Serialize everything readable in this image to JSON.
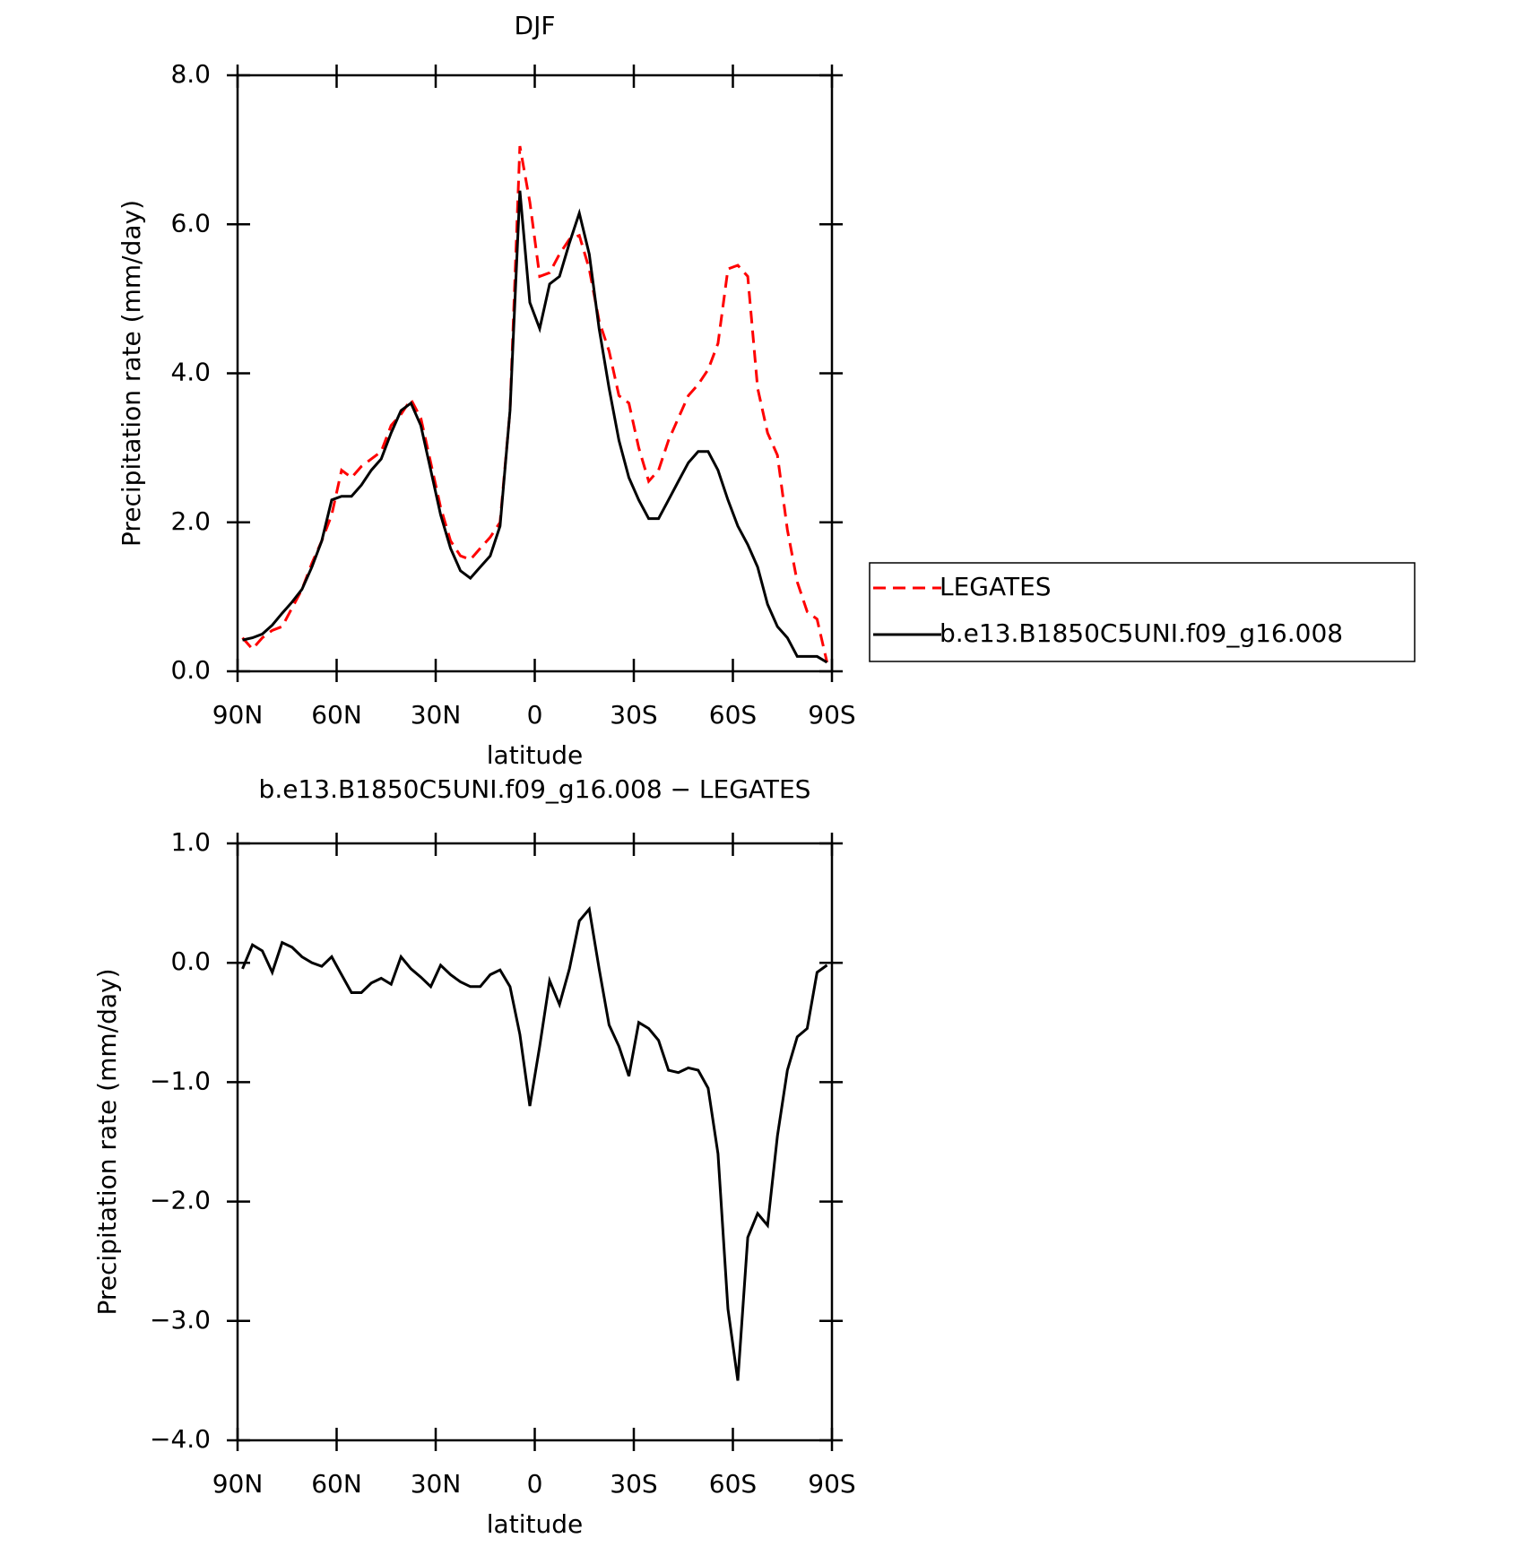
{
  "chart_data": [
    {
      "type": "line",
      "title": "DJF",
      "x_label": "latitude",
      "y_label": "Precipitation rate (mm/day)",
      "x": [
        88.5,
        85.5,
        82.5,
        79.5,
        76.5,
        73.5,
        70.5,
        67.5,
        64.5,
        61.5,
        58.5,
        55.5,
        52.5,
        49.5,
        46.5,
        43.5,
        40.5,
        37.5,
        34.5,
        31.5,
        28.5,
        25.5,
        22.5,
        19.5,
        16.5,
        13.5,
        10.5,
        7.5,
        4.5,
        1.5,
        -1.5,
        -4.5,
        -7.5,
        -10.5,
        -13.5,
        -16.5,
        -19.5,
        -22.5,
        -25.5,
        -28.5,
        -31.5,
        -34.5,
        -37.5,
        -40.5,
        -43.5,
        -46.5,
        -49.5,
        -52.5,
        -55.5,
        -58.5,
        -61.5,
        -64.5,
        -67.5,
        -70.5,
        -73.5,
        -76.5,
        -79.5,
        -82.5,
        -85.5,
        -88.5
      ],
      "xlim": [
        90,
        -90
      ],
      "xticks": [
        {
          "value": 90,
          "label": "90N"
        },
        {
          "value": 60,
          "label": "60N"
        },
        {
          "value": 30,
          "label": "30N"
        },
        0,
        {
          "value": -30,
          "label": "30S"
        },
        {
          "value": -60,
          "label": "60S"
        },
        {
          "value": -90,
          "label": "90S"
        }
      ],
      "ylim": [
        0,
        8
      ],
      "yticks": [
        {
          "value": 0,
          "label": "0.0"
        },
        {
          "value": 2,
          "label": "2.0"
        },
        {
          "value": 4,
          "label": "4.0"
        },
        {
          "value": 6,
          "label": "6.0"
        },
        {
          "value": 8,
          "label": "8.0"
        }
      ],
      "legend": "right",
      "series": [
        {
          "name": "LEGATES",
          "color": "#ff0000",
          "style": "dashed",
          "values": [
            0.45,
            0.3,
            0.45,
            0.55,
            0.6,
            0.85,
            1.1,
            1.45,
            1.75,
            2.1,
            2.7,
            2.6,
            2.75,
            2.85,
            2.95,
            3.3,
            3.45,
            3.65,
            3.4,
            2.8,
            2.2,
            1.75,
            1.55,
            1.5,
            1.65,
            1.8,
            2.0,
            3.5,
            7.05,
            6.3,
            5.3,
            5.35,
            5.6,
            5.8,
            5.85,
            5.4,
            4.7,
            4.3,
            3.7,
            3.6,
            3.0,
            2.55,
            2.7,
            3.1,
            3.4,
            3.7,
            3.85,
            4.05,
            4.4,
            5.4,
            5.45,
            5.3,
            3.8,
            3.2,
            2.9,
            1.9,
            1.2,
            0.8,
            0.7,
            0.12
          ]
        },
        {
          "name": "b.e13.B1850C5UNI.f09_g16.008",
          "color": "#000000",
          "style": "solid",
          "values": [
            0.42,
            0.45,
            0.5,
            0.62,
            0.78,
            0.93,
            1.1,
            1.4,
            1.75,
            2.3,
            2.35,
            2.35,
            2.5,
            2.7,
            2.85,
            3.2,
            3.5,
            3.6,
            3.3,
            2.7,
            2.1,
            1.65,
            1.35,
            1.25,
            1.4,
            1.55,
            1.95,
            3.5,
            6.45,
            4.95,
            4.6,
            5.2,
            5.3,
            5.75,
            6.15,
            5.6,
            4.6,
            3.8,
            3.1,
            2.6,
            2.3,
            2.05,
            2.05,
            2.3,
            2.55,
            2.8,
            2.95,
            2.95,
            2.7,
            2.3,
            1.95,
            1.7,
            1.4,
            0.9,
            0.6,
            0.45,
            0.2,
            0.2,
            0.2,
            0.12
          ]
        }
      ]
    },
    {
      "type": "line",
      "title": "b.e13.B1850C5UNI.f09_g16.008 − LEGATES",
      "x_label": "latitude",
      "y_label": "Precipitation rate (mm/day)",
      "x": [
        88.5,
        85.5,
        82.5,
        79.5,
        76.5,
        73.5,
        70.5,
        67.5,
        64.5,
        61.5,
        58.5,
        55.5,
        52.5,
        49.5,
        46.5,
        43.5,
        40.5,
        37.5,
        34.5,
        31.5,
        28.5,
        25.5,
        22.5,
        19.5,
        16.5,
        13.5,
        10.5,
        7.5,
        4.5,
        1.5,
        -1.5,
        -4.5,
        -7.5,
        -10.5,
        -13.5,
        -16.5,
        -19.5,
        -22.5,
        -25.5,
        -28.5,
        -31.5,
        -34.5,
        -37.5,
        -40.5,
        -43.5,
        -46.5,
        -49.5,
        -52.5,
        -55.5,
        -58.5,
        -61.5,
        -64.5,
        -67.5,
        -70.5,
        -73.5,
        -76.5,
        -79.5,
        -82.5,
        -85.5,
        -88.5
      ],
      "xlim": [
        90,
        -90
      ],
      "xticks": [
        {
          "value": 90,
          "label": "90N"
        },
        {
          "value": 60,
          "label": "60N"
        },
        {
          "value": 30,
          "label": "30N"
        },
        0,
        {
          "value": -30,
          "label": "30S"
        },
        {
          "value": -60,
          "label": "60S"
        },
        {
          "value": -90,
          "label": "90S"
        }
      ],
      "ylim": [
        -4,
        1
      ],
      "yticks": [
        {
          "value": -4,
          "label": "−4.0"
        },
        {
          "value": -3,
          "label": "−3.0"
        },
        {
          "value": -2,
          "label": "−2.0"
        },
        {
          "value": -1,
          "label": "−1.0"
        },
        {
          "value": 0,
          "label": "0.0"
        },
        {
          "value": 1,
          "label": "1.0"
        }
      ],
      "series": [
        {
          "color": "#000000",
          "style": "solid",
          "values": [
            -0.05,
            0.15,
            0.1,
            -0.08,
            0.17,
            0.13,
            0.05,
            0.0,
            -0.03,
            0.05,
            -0.1,
            -0.25,
            -0.25,
            -0.17,
            -0.13,
            -0.18,
            0.05,
            -0.05,
            -0.12,
            -0.2,
            -0.02,
            -0.1,
            -0.16,
            -0.2,
            -0.2,
            -0.1,
            -0.06,
            -0.2,
            -0.6,
            -1.2,
            -0.7,
            -0.15,
            -0.35,
            -0.05,
            0.35,
            0.45,
            -0.05,
            -0.52,
            -0.7,
            -0.95,
            -0.5,
            -0.55,
            -0.65,
            -0.9,
            -0.92,
            -0.88,
            -0.9,
            -1.05,
            -1.6,
            -2.9,
            -3.5,
            -2.3,
            -2.1,
            -2.2,
            -1.45,
            -0.9,
            -0.62,
            -0.55,
            -0.08,
            -0.02
          ]
        }
      ]
    }
  ]
}
